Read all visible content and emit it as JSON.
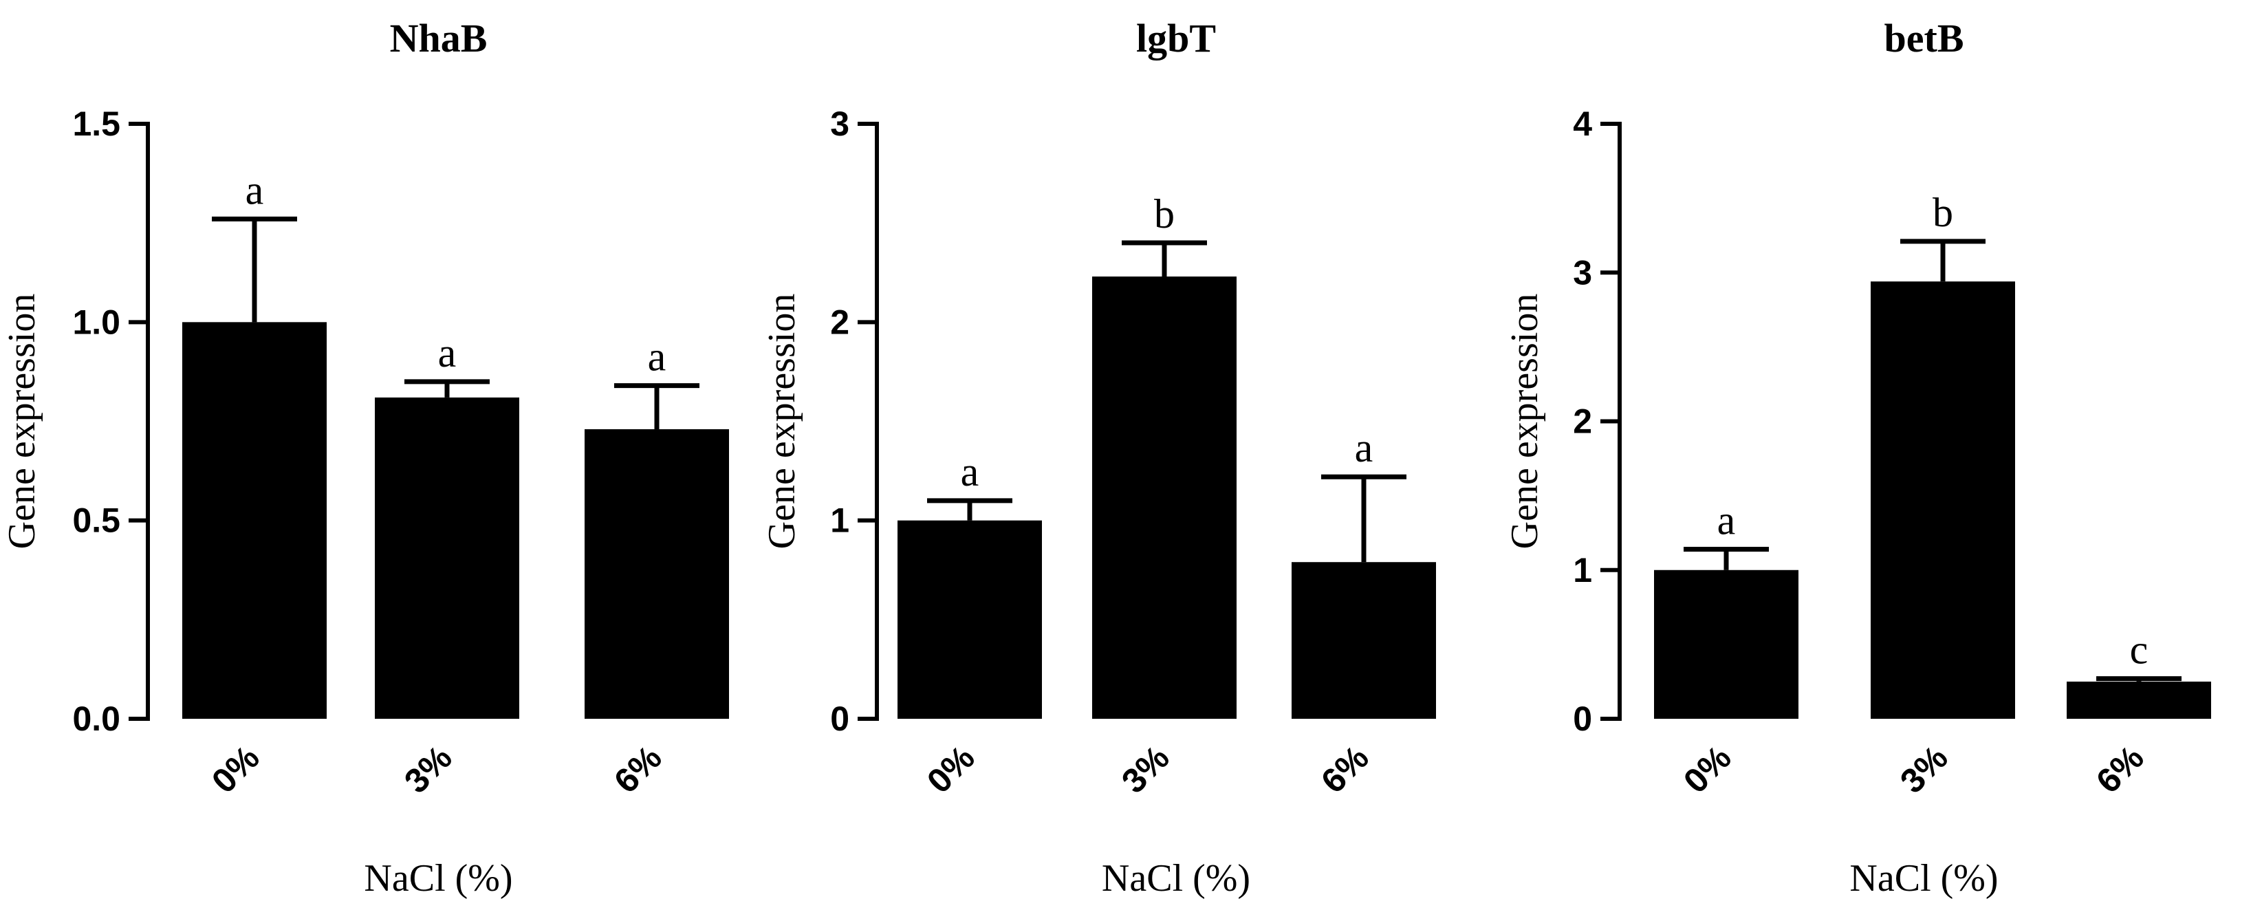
{
  "chart_data": [
    {
      "type": "bar",
      "title": "NhaB",
      "xlabel": "NaCl (%)",
      "ylabel": "Gene expression",
      "categories": [
        "0%",
        "3%",
        "6%"
      ],
      "values": [
        1.0,
        0.81,
        0.73
      ],
      "errors": [
        0.26,
        0.04,
        0.11
      ],
      "significance": [
        "a",
        "a",
        "a"
      ],
      "ylim": [
        0,
        1.5
      ],
      "yticks": [
        "0.0",
        "0.5",
        "1.0",
        "1.5"
      ]
    },
    {
      "type": "bar",
      "title": "lgbT",
      "xlabel": "NaCl (%)",
      "ylabel": "Gene expression",
      "categories": [
        "0%",
        "3%",
        "6%"
      ],
      "values": [
        1.0,
        2.23,
        0.79
      ],
      "errors": [
        0.1,
        0.17,
        0.43
      ],
      "significance": [
        "a",
        "b",
        "a"
      ],
      "ylim": [
        0,
        3
      ],
      "yticks": [
        "0",
        "1",
        "2",
        "3"
      ]
    },
    {
      "type": "bar",
      "title": "betB",
      "xlabel": "NaCl (%)",
      "ylabel": "Gene expression",
      "categories": [
        "0%",
        "3%",
        "6%"
      ],
      "values": [
        1.0,
        2.94,
        0.25
      ],
      "errors": [
        0.14,
        0.27,
        0.02
      ],
      "significance": [
        "a",
        "b",
        "c"
      ],
      "ylim": [
        0,
        4
      ],
      "yticks": [
        "0",
        "1",
        "2",
        "3",
        "4"
      ]
    }
  ],
  "colors": {
    "bar": "#000000",
    "axis": "#000000",
    "background": "#ffffff"
  }
}
